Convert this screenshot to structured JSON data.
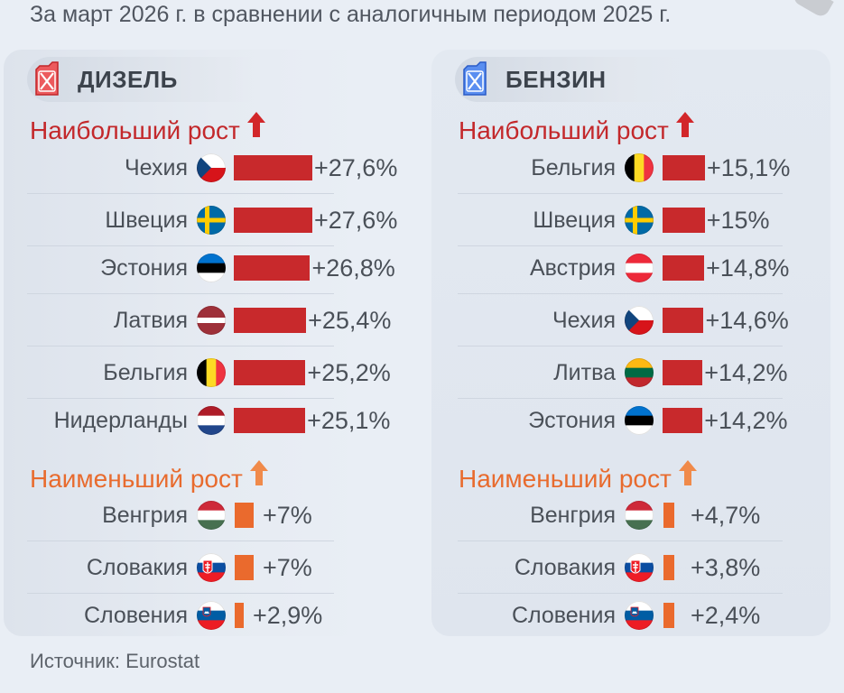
{
  "subtitle": "За март 2026 г. в сравнении с аналогичным периодом 2025 г.",
  "source": "Источник: Eurostat",
  "colors": {
    "top_bar": "#c8292c",
    "bottom_bar": "#ea6a2d",
    "top_title": "#c3282b",
    "bottom_title": "#e86b2e"
  },
  "chart_data": [
    {
      "type": "bar",
      "title": "ДИЗЕЛЬ",
      "icon": "red-fuel-canister-icon",
      "groups": [
        {
          "title": "Наибольший рост",
          "categories": [
            "Чехия",
            "Швеция",
            "Эстония",
            "Латвия",
            "Бельгия",
            "Нидерланды"
          ],
          "values": [
            27.6,
            27.6,
            26.8,
            25.4,
            25.2,
            25.1
          ],
          "labels": [
            "+27,6%",
            "+27,6%",
            "+26,8%",
            "+25,4%",
            "+25,2%",
            "+25,1%"
          ],
          "flags": [
            "CZ",
            "SE",
            "EE",
            "LV",
            "BE",
            "NL"
          ]
        },
        {
          "title": "Наименьший рост",
          "categories": [
            "Венгрия",
            "Словакия",
            "Словения"
          ],
          "values": [
            7,
            7,
            2.9
          ],
          "labels": [
            "+7%",
            "+7%",
            "+2,9%"
          ],
          "flags": [
            "HU",
            "SK",
            "SI"
          ]
        }
      ]
    },
    {
      "type": "bar",
      "title": "БЕНЗИН",
      "icon": "blue-fuel-canister-icon",
      "groups": [
        {
          "title": "Наибольший рост",
          "categories": [
            "Бельгия",
            "Швеция",
            "Австрия",
            "Чехия",
            "Литва",
            "Эстония"
          ],
          "values": [
            15.1,
            15,
            14.8,
            14.6,
            14.2,
            14.2
          ],
          "labels": [
            "+15,1%",
            "+15%",
            "+14,8%",
            "+14,6%",
            "+14,2%",
            "+14,2%"
          ],
          "flags": [
            "BE",
            "SE",
            "AT",
            "CZ",
            "LT",
            "EE"
          ]
        },
        {
          "title": "Наименьший рост",
          "categories": [
            "Венгрия",
            "Словакия",
            "Словения"
          ],
          "values": [
            4.7,
            3.8,
            2.4
          ],
          "labels": [
            "+4,7%",
            "+3,8%",
            "+2,4%"
          ],
          "flags": [
            "HU",
            "SK",
            "SI"
          ]
        }
      ]
    }
  ]
}
